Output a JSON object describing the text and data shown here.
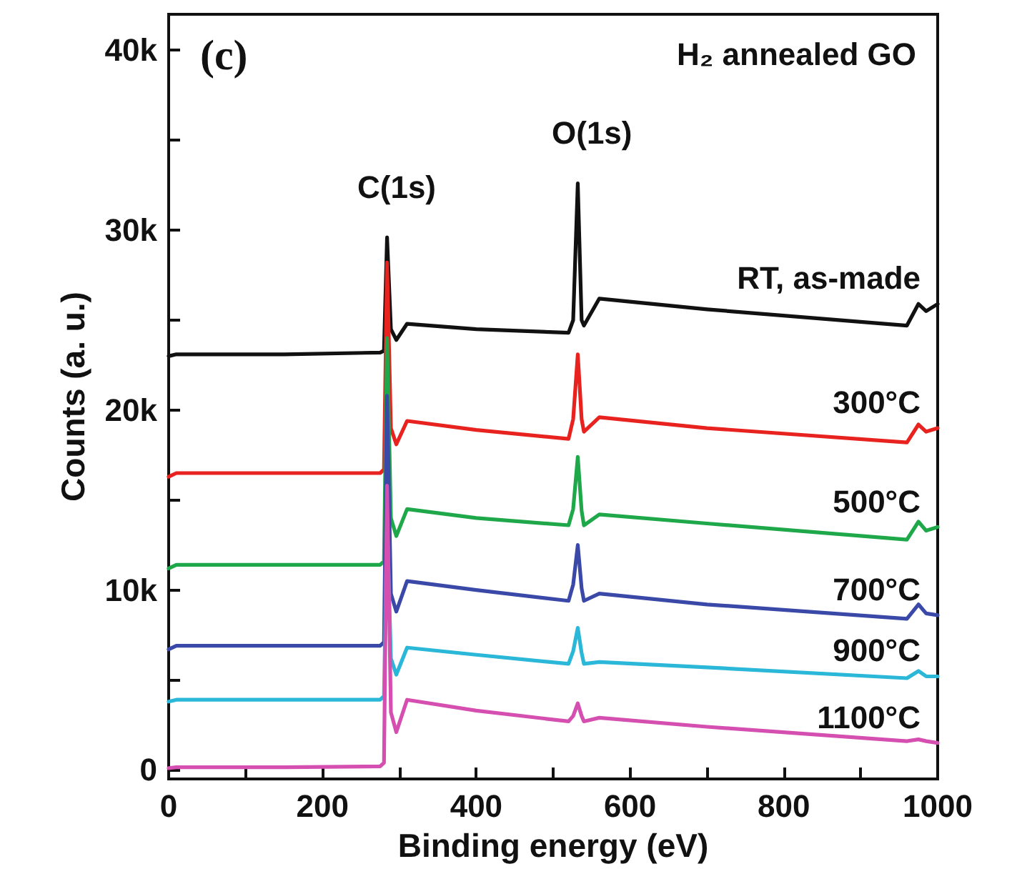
{
  "chart_data": {
    "type": "line",
    "title": "H₂ annealed GO",
    "xlabel": "Binding energy (eV)",
    "ylabel": "Counts (a. u.)",
    "annotations": [
      "(c)",
      "C(1s)",
      "O(1s)"
    ],
    "xlim": [
      0,
      1000
    ],
    "xticks": [
      0,
      {
        "value": 100,
        "label": null
      },
      200,
      {
        "value": 300,
        "label": null
      },
      400,
      {
        "value": 500,
        "label": null
      },
      600,
      {
        "value": 700,
        "label": null
      },
      800,
      {
        "value": 900,
        "label": null
      },
      1000
    ],
    "ylim": [
      -500,
      42000
    ],
    "yticks": [
      {
        "value": 0,
        "label": "0"
      },
      {
        "value": 5000,
        "label": null
      },
      {
        "value": 10000,
        "label": "10k"
      },
      {
        "value": 15000,
        "label": null
      },
      {
        "value": 20000,
        "label": "20k"
      },
      {
        "value": 25000,
        "label": null
      },
      {
        "value": 30000,
        "label": "30k"
      },
      {
        "value": 35000,
        "label": null
      },
      {
        "value": 40000,
        "label": "40k"
      }
    ],
    "grid": false,
    "legend": false,
    "marker": "none",
    "line_style": "solid",
    "x": [
      0,
      10,
      150,
      275,
      280,
      284,
      289,
      296,
      310,
      400,
      520,
      526,
      532,
      537,
      540,
      560,
      700,
      960,
      975,
      985,
      1000
    ],
    "series": [
      {
        "name": "RT, as-made",
        "color": "#111111",
        "values": [
          23000,
          23100,
          23100,
          23200,
          23300,
          29600,
          24500,
          23900,
          24800,
          24500,
          24300,
          25000,
          32600,
          25000,
          24700,
          26200,
          25600,
          24700,
          25900,
          25500,
          25900
        ]
      },
      {
        "name": "300°C",
        "color": "#e8231f",
        "values": [
          16300,
          16500,
          16500,
          16500,
          16700,
          28200,
          19000,
          18100,
          19400,
          18900,
          18400,
          19500,
          23100,
          19500,
          18800,
          19600,
          19000,
          18200,
          19200,
          18800,
          19000
        ]
      },
      {
        "name": "500°C",
        "color": "#1fa84a",
        "values": [
          11200,
          11400,
          11400,
          11400,
          11600,
          24000,
          14000,
          13000,
          14500,
          14000,
          13600,
          14500,
          17400,
          14400,
          13600,
          14200,
          13700,
          12800,
          13800,
          13300,
          13500
        ]
      },
      {
        "name": "700°C",
        "color": "#3a48a8",
        "values": [
          6700,
          6900,
          6900,
          6900,
          7100,
          20800,
          9800,
          8800,
          10500,
          10000,
          9400,
          10300,
          12500,
          10100,
          9400,
          9800,
          9200,
          8400,
          9200,
          8700,
          8600
        ]
      },
      {
        "name": "900°C",
        "color": "#2ab7d8",
        "values": [
          3800,
          3900,
          3900,
          3900,
          4100,
          14000,
          6200,
          5300,
          6800,
          6400,
          5900,
          6600,
          7900,
          6500,
          5900,
          6000,
          5700,
          5100,
          5500,
          5200,
          5200
        ]
      },
      {
        "name": "1100°C",
        "color": "#d44fb0",
        "values": [
          100,
          150,
          150,
          200,
          400,
          15800,
          3200,
          2100,
          3900,
          3300,
          2700,
          3000,
          3700,
          3000,
          2700,
          2900,
          2400,
          1600,
          1700,
          1600,
          1500
        ]
      }
    ]
  }
}
